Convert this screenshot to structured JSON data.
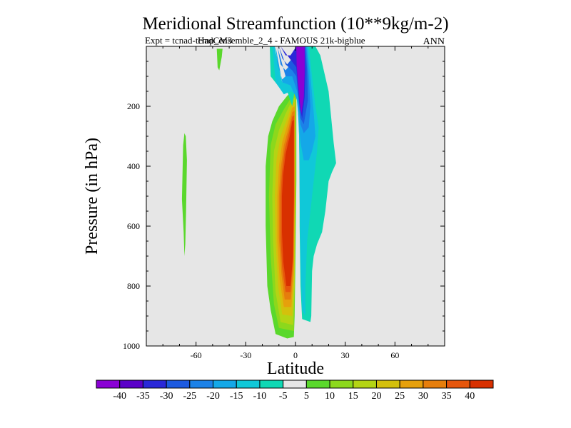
{
  "chart_data": {
    "type": "heatmap",
    "title": "Meridional Streamfunction (10**9kg/m-2)",
    "subtitle": "Expt = tcnad-tcmp_ensemble_2_4 - FAMOUS 21k-bigblue",
    "overlay_text": "HadCM3",
    "season_label": "ANN",
    "xlabel": "Latitude",
    "ylabel": "Pressure (in hPa)",
    "xlim": [
      -90,
      90
    ],
    "ylim": [
      0,
      1000
    ],
    "y_inverted": true,
    "x_ticks": [
      {
        "value": -60,
        "label": "-60"
      },
      {
        "value": -30,
        "label": "-30"
      },
      {
        "value": 0,
        "label": "0"
      },
      {
        "value": 30,
        "label": "30"
      },
      {
        "value": 60,
        "label": "60"
      }
    ],
    "y_ticks": [
      {
        "value": 200,
        "label": "200"
      },
      {
        "value": 400,
        "label": "400"
      },
      {
        "value": 600,
        "label": "600"
      },
      {
        "value": 800,
        "label": "800"
      },
      {
        "value": 1000,
        "label": "1000"
      }
    ],
    "plot_background": "#e6e6e6",
    "colorbar": {
      "labels": [
        "-40",
        "-35",
        "-30",
        "-25",
        "-20",
        "-15",
        "-10",
        "-5",
        "5",
        "10",
        "15",
        "20",
        "25",
        "30",
        "35",
        "40"
      ],
      "colors": [
        "#8a00d4",
        "#5a00c8",
        "#2a28d8",
        "#1c5ae0",
        "#1c82e8",
        "#14a8e8",
        "#10c8d8",
        "#10d8b4",
        "#e6e6e6",
        "#5ad82c",
        "#8cd81c",
        "#b4d414",
        "#d4c00c",
        "#e6a00c",
        "#e67e0c",
        "#e6560c",
        "#d83000"
      ]
    },
    "regions": [
      {
        "name": "southern-small-positive-cell",
        "class": "5 to 10",
        "color": "#5ad82c",
        "points": [
          [
            -68.5,
            510
          ],
          [
            -67.5,
            620
          ],
          [
            -67,
            700
          ],
          [
            -66.5,
            660
          ],
          [
            -66,
            550
          ],
          [
            -65.5,
            380
          ],
          [
            -66.2,
            300
          ],
          [
            -67,
            290
          ],
          [
            -67.8,
            330
          ]
        ]
      },
      {
        "name": "upper-small-positive-cell",
        "class": "5 to 10",
        "color": "#5ad82c",
        "points": [
          [
            -47.5,
            8
          ],
          [
            -44,
            8
          ],
          [
            -44.5,
            35
          ],
          [
            -46,
            80
          ],
          [
            -47,
            70
          ]
        ]
      },
      {
        "name": "main-cell-outer",
        "class": "5 to 10",
        "color": "#5ad82c",
        "points": [
          [
            -2,
            150
          ],
          [
            -0.5,
            120
          ],
          [
            0.5,
            130
          ],
          [
            0.5,
            450
          ],
          [
            0,
            700
          ],
          [
            -0.5,
            900
          ],
          [
            -1,
            970
          ],
          [
            -5,
            975
          ],
          [
            -12,
            960
          ],
          [
            -15,
            880
          ],
          [
            -17,
            800
          ],
          [
            -18,
            600
          ],
          [
            -18,
            400
          ],
          [
            -16.5,
            300
          ],
          [
            -14,
            250
          ],
          [
            -10,
            200
          ],
          [
            -5,
            165
          ]
        ]
      },
      {
        "name": "main-cell-10",
        "class": "10 to 15",
        "color": "#8cd81c",
        "points": [
          [
            -2,
            165
          ],
          [
            0.2,
            150
          ],
          [
            0.2,
            500
          ],
          [
            -0.5,
            800
          ],
          [
            -1,
            950
          ],
          [
            -10,
            940
          ],
          [
            -13,
            860
          ],
          [
            -15,
            700
          ],
          [
            -16,
            500
          ],
          [
            -15,
            330
          ],
          [
            -12,
            260
          ],
          [
            -7,
            210
          ]
        ]
      },
      {
        "name": "main-cell-15",
        "class": "15 to 20",
        "color": "#b4d414",
        "points": [
          [
            -2,
            178
          ],
          [
            0,
            170
          ],
          [
            0,
            500
          ],
          [
            -0.5,
            800
          ],
          [
            -1.5,
            930
          ],
          [
            -9,
            920
          ],
          [
            -12,
            820
          ],
          [
            -13.5,
            650
          ],
          [
            -14,
            500
          ],
          [
            -13,
            350
          ],
          [
            -10,
            280
          ],
          [
            -6,
            225
          ]
        ]
      },
      {
        "name": "main-cell-20",
        "class": "20 to 25",
        "color": "#d4c00c",
        "points": [
          [
            -2,
            190
          ],
          [
            -0.2,
            185
          ],
          [
            -0.2,
            500
          ],
          [
            -0.8,
            780
          ],
          [
            -2,
            900
          ],
          [
            -8,
            895
          ],
          [
            -10.5,
            800
          ],
          [
            -12,
            650
          ],
          [
            -12.5,
            500
          ],
          [
            -11.5,
            380
          ],
          [
            -9,
            300
          ],
          [
            -5,
            240
          ]
        ]
      },
      {
        "name": "main-cell-25",
        "class": "25 to 30",
        "color": "#e6a00c",
        "points": [
          [
            -2,
            205
          ],
          [
            -0.4,
            200
          ],
          [
            -0.4,
            500
          ],
          [
            -1,
            760
          ],
          [
            -2.5,
            870
          ],
          [
            -7,
            870
          ],
          [
            -9.5,
            780
          ],
          [
            -11,
            650
          ],
          [
            -11,
            500
          ],
          [
            -10,
            400
          ],
          [
            -8,
            320
          ],
          [
            -4.5,
            255
          ]
        ]
      },
      {
        "name": "main-cell-30",
        "class": "30 to 35",
        "color": "#e67e0c",
        "points": [
          [
            -2,
            220
          ],
          [
            -0.6,
            215
          ],
          [
            -0.6,
            500
          ],
          [
            -1.2,
            740
          ],
          [
            -2.8,
            845
          ],
          [
            -6.5,
            845
          ],
          [
            -8.5,
            760
          ],
          [
            -10,
            640
          ],
          [
            -10,
            500
          ],
          [
            -9,
            410
          ],
          [
            -7,
            330
          ],
          [
            -4,
            270
          ]
        ]
      },
      {
        "name": "main-cell-35",
        "class": "35 to 40",
        "color": "#e6560c",
        "points": [
          [
            -2,
            235
          ],
          [
            -0.8,
            230
          ],
          [
            -0.8,
            500
          ],
          [
            -1.4,
            720
          ],
          [
            -3,
            820
          ],
          [
            -6,
            820
          ],
          [
            -8,
            740
          ],
          [
            -9,
            640
          ],
          [
            -9,
            500
          ],
          [
            -8.2,
            420
          ],
          [
            -6.5,
            345
          ],
          [
            -3.8,
            285
          ]
        ]
      },
      {
        "name": "main-cell-core",
        "class": "above 40",
        "color": "#d83000",
        "points": [
          [
            -2,
            250
          ],
          [
            -1,
            245
          ],
          [
            -1,
            500
          ],
          [
            -1.5,
            700
          ],
          [
            -3,
            800
          ],
          [
            -5.5,
            800
          ],
          [
            -7.3,
            720
          ],
          [
            -8.2,
            620
          ],
          [
            -8.2,
            500
          ],
          [
            -7.5,
            430
          ],
          [
            -6,
            360
          ],
          [
            -3.5,
            300
          ]
        ]
      },
      {
        "name": "northern-cell-outer",
        "class": "-10 to -5",
        "color": "#10d8b4",
        "points": [
          [
            -15.5,
            0
          ],
          [
            -12.5,
            0
          ],
          [
            -12,
            50
          ],
          [
            -10,
            120
          ],
          [
            -8,
            150
          ],
          [
            -4,
            120
          ],
          [
            -1,
            80
          ],
          [
            0.5,
            0
          ],
          [
            12,
            0
          ],
          [
            15,
            30
          ],
          [
            20,
            150
          ],
          [
            23,
            320
          ],
          [
            24.5,
            390
          ],
          [
            22,
            420
          ],
          [
            20,
            450
          ],
          [
            18,
            550
          ],
          [
            16,
            620
          ],
          [
            13,
            660
          ],
          [
            11,
            700
          ],
          [
            10,
            750
          ],
          [
            9.5,
            900
          ],
          [
            9,
            920
          ],
          [
            4,
            910
          ],
          [
            3,
            800
          ],
          [
            2.5,
            600
          ],
          [
            2.5,
            400
          ],
          [
            2,
            250
          ],
          [
            0,
            130
          ],
          [
            -2,
            200
          ],
          [
            -5,
            150
          ],
          [
            -10,
            135
          ],
          [
            -15,
            100
          ]
        ]
      },
      {
        "name": "northern-cell-10",
        "class": "-15 to -10",
        "color": "#10c8d8",
        "points": [
          [
            -14,
            0
          ],
          [
            -12.5,
            0
          ],
          [
            -11,
            50
          ],
          [
            -8,
            120
          ],
          [
            -4,
            100
          ],
          [
            -1,
            50
          ],
          [
            0.5,
            0
          ],
          [
            8,
            0
          ],
          [
            10,
            100
          ],
          [
            12,
            200
          ],
          [
            14,
            270
          ],
          [
            13,
            350
          ],
          [
            11,
            450
          ],
          [
            9,
            550
          ],
          [
            7,
            650
          ],
          [
            6,
            800
          ],
          [
            6,
            900
          ],
          [
            4,
            880
          ],
          [
            3,
            700
          ],
          [
            2.5,
            500
          ],
          [
            2.2,
            300
          ],
          [
            1,
            160
          ],
          [
            -3,
            150
          ],
          [
            -7,
            160
          ],
          [
            -12,
            120
          ]
        ]
      },
      {
        "name": "northern-cell-15",
        "class": "-20 to -15",
        "color": "#14a8e8",
        "points": [
          [
            -12,
            0
          ],
          [
            -11,
            60
          ],
          [
            -8,
            110
          ],
          [
            -4,
            90
          ],
          [
            -1,
            40
          ],
          [
            0.5,
            0
          ],
          [
            7,
            0
          ],
          [
            9,
            100
          ],
          [
            11,
            220
          ],
          [
            12,
            300
          ],
          [
            10,
            350
          ],
          [
            8,
            380
          ],
          [
            5,
            380
          ],
          [
            3,
            320
          ],
          [
            2,
            250
          ],
          [
            1,
            180
          ],
          [
            -3,
            130
          ],
          [
            -8,
            120
          ]
        ]
      },
      {
        "name": "northern-cell-20",
        "class": "-25 to -20",
        "color": "#1c82e8",
        "points": [
          [
            -11,
            0
          ],
          [
            -9,
            60
          ],
          [
            -6,
            80
          ],
          [
            -3,
            60
          ],
          [
            -1,
            20
          ],
          [
            0.5,
            0
          ],
          [
            6.5,
            0
          ],
          [
            8,
            100
          ],
          [
            9,
            200
          ],
          [
            8,
            270
          ],
          [
            5,
            290
          ],
          [
            3,
            260
          ],
          [
            2,
            200
          ],
          [
            1,
            150
          ],
          [
            -2,
            100
          ],
          [
            -6,
            100
          ]
        ]
      },
      {
        "name": "northern-cell-25",
        "class": "-30 to -25",
        "color": "#1c5ae0",
        "points": [
          [
            -10,
            0
          ],
          [
            -8,
            40
          ],
          [
            -5,
            60
          ],
          [
            -2,
            40
          ],
          [
            0.5,
            0
          ],
          [
            6,
            0
          ],
          [
            7,
            80
          ],
          [
            7.5,
            180
          ],
          [
            5,
            260
          ],
          [
            3,
            240
          ],
          [
            2,
            180
          ],
          [
            0.5,
            100
          ],
          [
            -2,
            80
          ],
          [
            -6,
            60
          ]
        ]
      },
      {
        "name": "northern-cell-30",
        "class": "-35 to -30",
        "color": "#2a28d8",
        "points": [
          [
            -9,
            0
          ],
          [
            -6,
            30
          ],
          [
            -3,
            30
          ],
          [
            0.5,
            0
          ],
          [
            5.5,
            0
          ],
          [
            6,
            80
          ],
          [
            5.5,
            170
          ],
          [
            4,
            240
          ],
          [
            2.5,
            200
          ],
          [
            1.5,
            140
          ],
          [
            0.5,
            70
          ]
        ]
      },
      {
        "name": "northern-cell-core",
        "class": "below -35",
        "color": "#8a00d4",
        "points": [
          [
            0.5,
            0
          ],
          [
            5.5,
            0
          ],
          [
            5.5,
            90
          ],
          [
            5,
            170
          ],
          [
            3.5,
            225
          ],
          [
            2.5,
            180
          ],
          [
            1.5,
            120
          ],
          [
            0.7,
            60
          ]
        ]
      }
    ]
  }
}
